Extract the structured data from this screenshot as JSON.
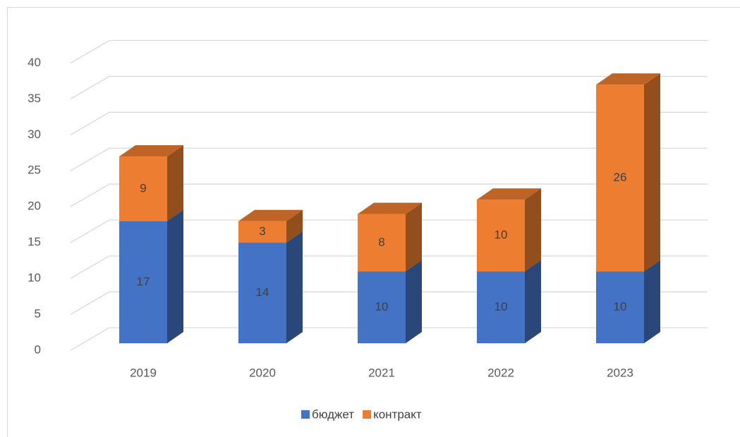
{
  "chart_data": {
    "type": "bar3d_stacked",
    "categories": [
      "2019",
      "2020",
      "2021",
      "2022",
      "2023"
    ],
    "series": [
      {
        "name": "бюджет",
        "color": "#4472c4",
        "values": [
          17,
          14,
          10,
          10,
          10
        ]
      },
      {
        "name": "контракт",
        "color": "#ed7d31",
        "values": [
          9,
          3,
          8,
          10,
          26
        ]
      }
    ],
    "ylim": [
      0,
      40
    ],
    "yticks": [
      0,
      5,
      10,
      15,
      20,
      25,
      30,
      35,
      40
    ],
    "grid": true,
    "legend": "bottom"
  }
}
